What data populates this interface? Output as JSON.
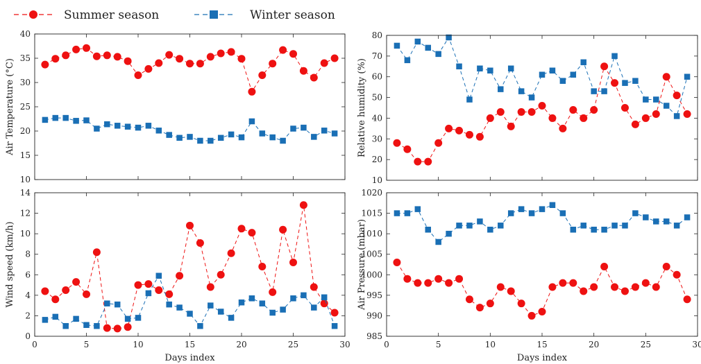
{
  "legend": {
    "summer": {
      "label": "Summer season",
      "color": "#ee1111"
    },
    "winter": {
      "label": "Winter season",
      "color": "#1a6fb5"
    }
  },
  "chart_data": [
    {
      "type": "line",
      "ylabel": "Air Temperature (°C)",
      "xlabel": "",
      "xlim": [
        0,
        30
      ],
      "ylim": [
        10,
        40
      ],
      "xticks": [
        0,
        5,
        10,
        15,
        20,
        25,
        30
      ],
      "yticks": [
        10,
        15,
        20,
        25,
        30,
        35,
        40
      ],
      "show_xtick_labels": false,
      "x": [
        1,
        2,
        3,
        4,
        5,
        6,
        7,
        8,
        9,
        10,
        11,
        12,
        13,
        14,
        15,
        16,
        17,
        18,
        19,
        20,
        21,
        22,
        23,
        24,
        25,
        26,
        27,
        28,
        29
      ],
      "series": [
        {
          "name": "Summer season",
          "values": [
            33.7,
            34.9,
            35.6,
            36.8,
            37.1,
            35.4,
            35.6,
            35.3,
            34.4,
            31.5,
            32.8,
            34,
            35.7,
            34.9,
            33.9,
            33.9,
            35.3,
            36,
            36.3,
            34.9,
            28.1,
            31.5,
            33.9,
            36.7,
            35.9,
            32.4,
            31,
            34,
            35
          ]
        },
        {
          "name": "Winter season",
          "values": [
            22.3,
            22.7,
            22.7,
            22.1,
            22.2,
            20.5,
            21.4,
            21.1,
            20.9,
            20.7,
            21.1,
            20.1,
            19.2,
            18.6,
            18.8,
            18,
            18,
            18.6,
            19.3,
            18.7,
            22,
            19.5,
            18.7,
            18,
            20.5,
            20.7,
            18.8,
            20.1,
            19.5
          ]
        }
      ]
    },
    {
      "type": "line",
      "ylabel": "Relative humidity (%)",
      "xlabel": "",
      "xlim": [
        0,
        30
      ],
      "ylim": [
        10,
        80
      ],
      "xticks": [
        0,
        5,
        10,
        15,
        20,
        25,
        30
      ],
      "yticks": [
        10,
        20,
        30,
        40,
        50,
        60,
        70,
        80
      ],
      "show_xtick_labels": false,
      "x": [
        1,
        2,
        3,
        4,
        5,
        6,
        7,
        8,
        9,
        10,
        11,
        12,
        13,
        14,
        15,
        16,
        17,
        18,
        19,
        20,
        21,
        22,
        23,
        24,
        25,
        26,
        27,
        28,
        29
      ],
      "series": [
        {
          "name": "Summer season",
          "values": [
            28,
            25,
            19,
            19,
            28,
            35,
            34,
            32,
            31,
            40,
            43,
            36,
            43,
            43,
            46,
            40,
            35,
            44,
            40,
            44,
            65,
            57,
            45,
            37,
            40,
            42,
            60,
            51,
            42
          ]
        },
        {
          "name": "Winter season",
          "values": [
            75,
            68,
            77,
            74,
            71,
            79,
            65,
            49,
            64,
            63,
            54,
            64,
            53,
            50,
            61,
            63,
            58,
            61,
            67,
            53,
            53,
            70,
            57,
            58,
            49,
            49,
            46,
            41,
            60
          ]
        }
      ]
    },
    {
      "type": "line",
      "ylabel": "Wind speed (km/h)",
      "xlabel": "Days index",
      "xlim": [
        0,
        30
      ],
      "ylim": [
        0,
        14
      ],
      "xticks": [
        0,
        5,
        10,
        15,
        20,
        25,
        30
      ],
      "yticks": [
        0,
        2,
        4,
        6,
        8,
        10,
        12,
        14
      ],
      "show_xtick_labels": true,
      "x": [
        1,
        2,
        3,
        4,
        5,
        6,
        7,
        8,
        9,
        10,
        11,
        12,
        13,
        14,
        15,
        16,
        17,
        18,
        19,
        20,
        21,
        22,
        23,
        24,
        25,
        26,
        27,
        28,
        29
      ],
      "series": [
        {
          "name": "Summer season",
          "values": [
            4.4,
            3.6,
            4.5,
            5.3,
            4.1,
            8.2,
            0.8,
            0.75,
            0.9,
            5,
            5.1,
            4.5,
            4.1,
            5.9,
            10.8,
            9.1,
            4.8,
            6,
            8.1,
            10.5,
            10.1,
            6.8,
            4.3,
            10.4,
            7.2,
            12.8,
            4.8,
            3.2,
            2.3
          ]
        },
        {
          "name": "Winter season",
          "values": [
            1.6,
            1.9,
            1,
            1.7,
            1.1,
            1,
            3.2,
            3.1,
            1.7,
            1.8,
            4.2,
            5.9,
            3.1,
            2.8,
            2.2,
            1,
            3,
            2.4,
            1.8,
            3.3,
            3.7,
            3.2,
            2.3,
            2.6,
            3.7,
            4,
            2.8,
            3.8,
            1
          ]
        }
      ]
    },
    {
      "type": "line",
      "ylabel": "Air Pressure (mbar)",
      "xlabel": "Days index",
      "xlim": [
        0,
        30
      ],
      "ylim": [
        985,
        1020
      ],
      "xticks": [
        0,
        5,
        10,
        15,
        20,
        25,
        30
      ],
      "yticks": [
        985,
        990,
        995,
        1000,
        1005,
        1010,
        1015,
        1020
      ],
      "show_xtick_labels": true,
      "x": [
        1,
        2,
        3,
        4,
        5,
        6,
        7,
        8,
        9,
        10,
        11,
        12,
        13,
        14,
        15,
        16,
        17,
        18,
        19,
        20,
        21,
        22,
        23,
        24,
        25,
        26,
        27,
        28,
        29
      ],
      "series": [
        {
          "name": "Summer season",
          "values": [
            1003,
            999,
            998,
            998,
            999,
            998,
            999,
            994,
            992,
            993,
            997,
            996,
            993,
            990,
            991,
            997,
            998,
            998,
            996,
            997,
            1002,
            997,
            996,
            997,
            998,
            997,
            1002,
            1000,
            994
          ]
        },
        {
          "name": "Winter season",
          "values": [
            1015,
            1015,
            1016,
            1011,
            1008,
            1010,
            1012,
            1012,
            1013,
            1011,
            1012,
            1015,
            1016,
            1015,
            1016,
            1017,
            1015,
            1011,
            1012,
            1011,
            1011,
            1012,
            1012,
            1015,
            1014,
            1013,
            1013,
            1012,
            1014
          ]
        }
      ]
    }
  ]
}
